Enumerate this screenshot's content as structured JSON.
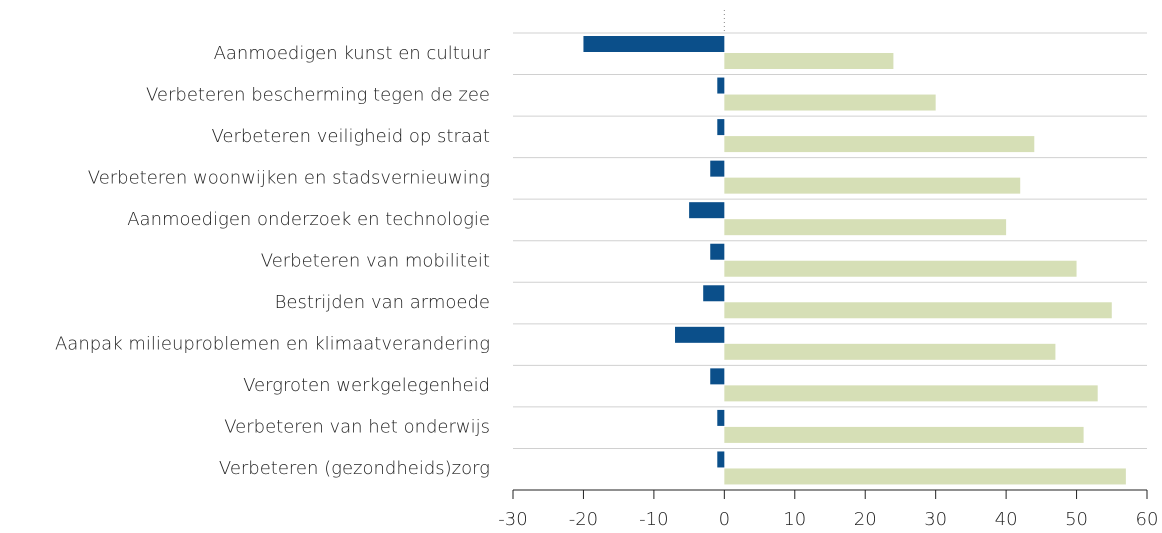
{
  "chart_data": {
    "type": "bar",
    "orientation": "horizontal",
    "categories": [
      "Aanmoedigen kunst en cultuur",
      "Verbeteren bescherming tegen de zee",
      "Verbeteren veiligheid op straat",
      "Verbeteren woonwijken en stadsvernieuwing",
      "Aanmoedigen onderzoek en technologie",
      "Verbeteren van mobiliteit",
      "Bestrijden van armoede",
      "Aanpak milieuproblemen en klimaatverandering",
      "Vergroten werkgelegenheid",
      "Verbeteren van het onderwijs",
      "Verbeteren (gezondheids)zorg"
    ],
    "series": [
      {
        "color": "#0b4f8a",
        "values": [
          -20,
          -1,
          -1,
          -2,
          -5,
          -2,
          -3,
          -7,
          -2,
          -1,
          -1
        ]
      },
      {
        "color": "#d6dfb6",
        "values": [
          24,
          30,
          44,
          42,
          40,
          50,
          55,
          47,
          53,
          51,
          57
        ]
      }
    ],
    "xlim": [
      -30,
      60
    ],
    "xticks": [
      -30,
      -20,
      -10,
      0,
      10,
      20,
      30,
      40,
      50,
      60
    ]
  }
}
